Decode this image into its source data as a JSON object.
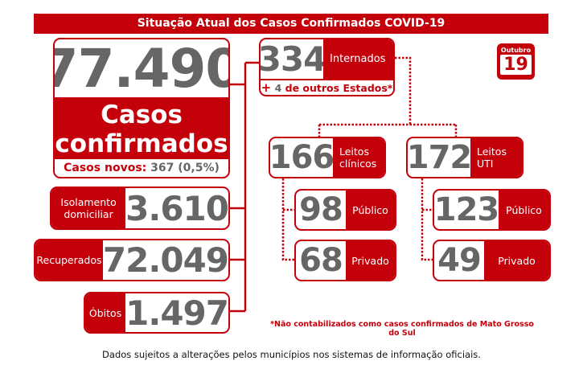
{
  "title": "Situação Atual dos Casos Confirmados COVID-19",
  "confirmed": {
    "value": "77.490",
    "label_line1": "Casos",
    "label_line2": "confirmados",
    "new_label": "Casos novos:",
    "new_value": "367 (0,5%)"
  },
  "hospitalized": {
    "value": "334",
    "label": "Internados",
    "plus": "+",
    "other_value": "4",
    "other_label": "de outros Estados*"
  },
  "calendar": {
    "month": "Outubro",
    "day": "19",
    "icon": "calendar-icon"
  },
  "clinical": {
    "value": "166",
    "label_line1": "Leitos",
    "label_line2": "clínicos",
    "public_value": "98",
    "public_label": "Público",
    "private_value": "68",
    "private_label": "Privado"
  },
  "icu": {
    "value": "172",
    "label_line1": "Leitos",
    "label_line2": "UTI",
    "public_value": "123",
    "public_label": "Público",
    "private_value": "49",
    "private_label": "Privado"
  },
  "home_isolation": {
    "label_line1": "Isolamento",
    "label_line2": "domiciliar",
    "value": "3.610"
  },
  "recovered": {
    "label": "Recuperados",
    "value": "72.049"
  },
  "deaths": {
    "label": "Óbitos",
    "value": "1.497"
  },
  "footnote": "*Não contabilizados como casos confirmados de Mato Grosso do Sul",
  "footer": "Dados sujeitos a alterações pelos municípios nos sistemas de informação oficiais.",
  "colors": {
    "accent": "#c4000b",
    "number": "#666666"
  }
}
